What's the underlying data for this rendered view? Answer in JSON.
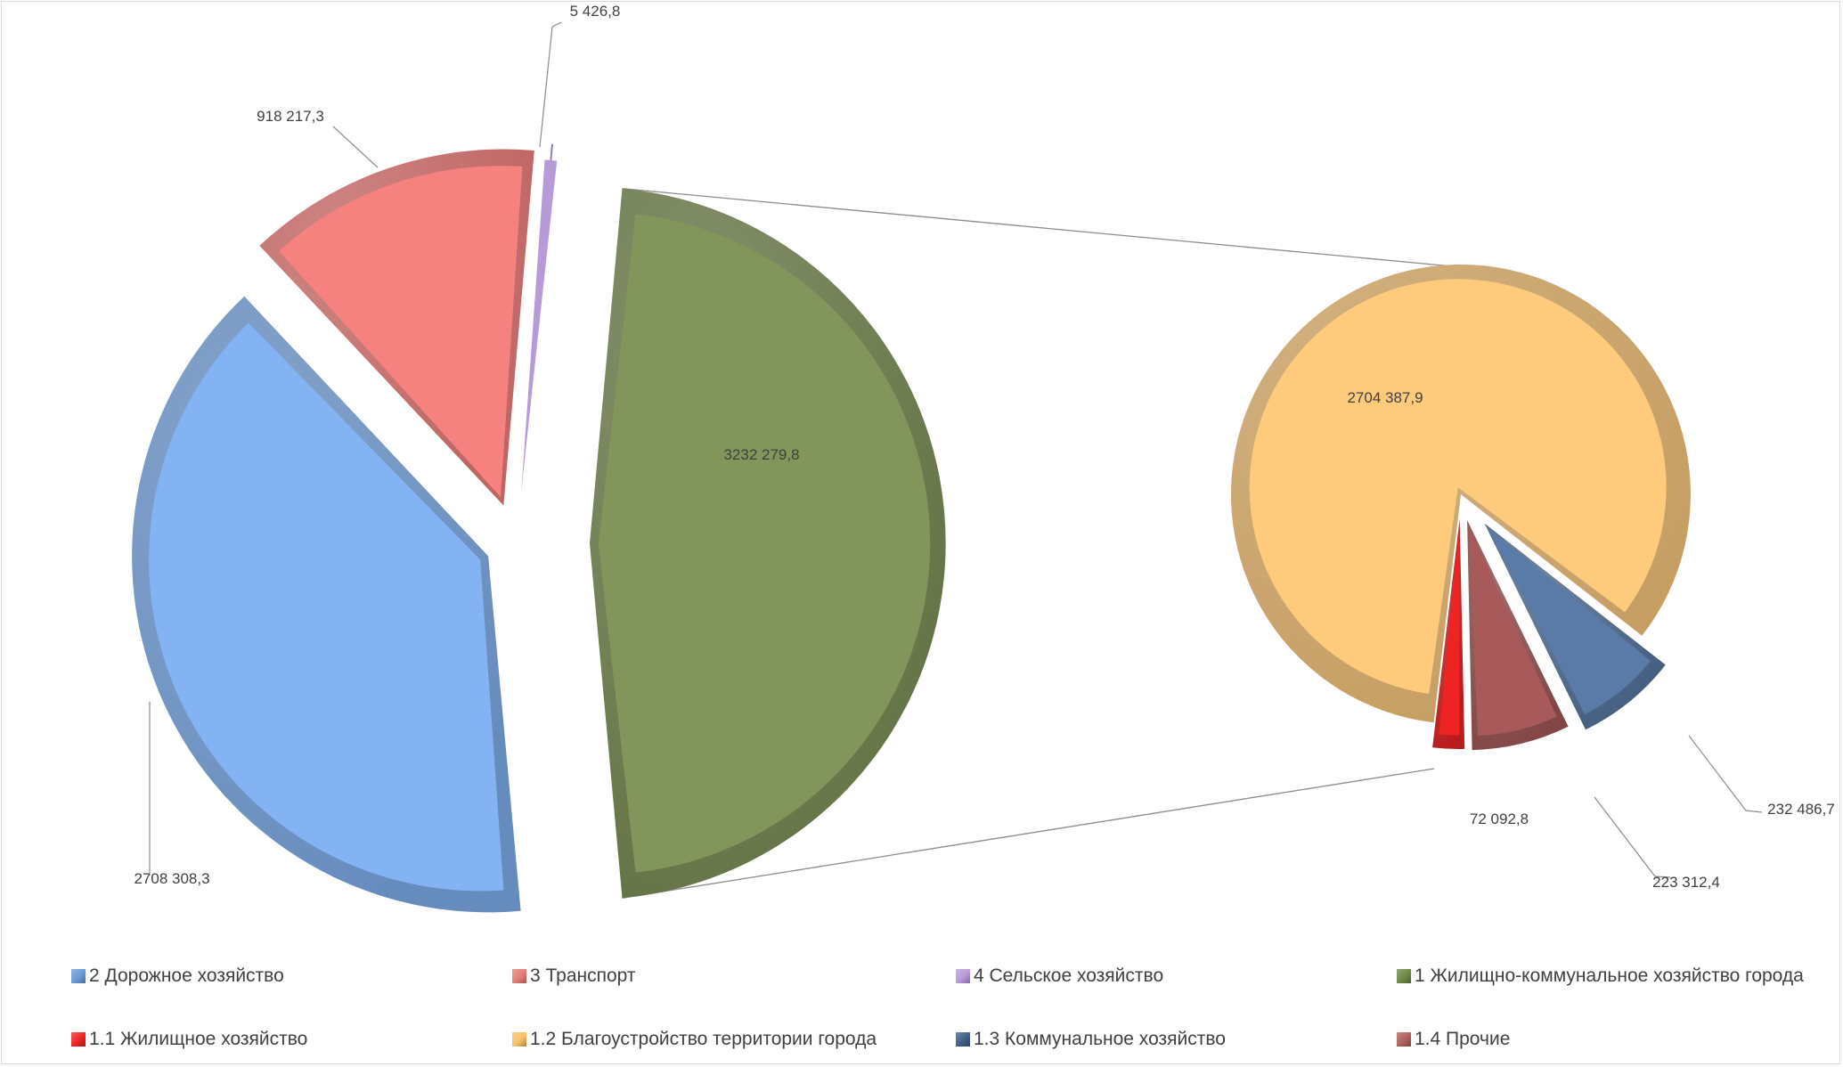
{
  "chart_data": {
    "type": "pie",
    "subtype": "pie-of-pie",
    "title": "",
    "primary": {
      "slices": [
        {
          "key": "zhkh",
          "name": "1 Жилищно-коммунальное  хозяйство города",
          "value": 3232279.8,
          "label": "3232 279,8",
          "color": "#82955a"
        },
        {
          "key": "road",
          "name": "2 Дорожное хозяйство",
          "value": 2708308.3,
          "label": "2708 308,3",
          "color": "#83b3f3"
        },
        {
          "key": "trans",
          "name": "3 Транспорт",
          "value": 918217.3,
          "label": "918 217,3",
          "color": "#f6827f"
        },
        {
          "key": "agri",
          "name": "4 Сельское хозяйство",
          "value": 5426.8,
          "label": "5 426,8",
          "color": "#b79ad8"
        }
      ]
    },
    "secondary": {
      "parent": "1 Жилищно-коммунальное  хозяйство города",
      "slices": [
        {
          "key": "blag",
          "name": "1.2 Благоустройство территории города",
          "value": 2704387.9,
          "label": "2704 387,9",
          "color": "#fecb7d"
        },
        {
          "key": "komm",
          "name": "1.3 Коммунальное хозяйство",
          "value": 232486.7,
          "label": "232 486,7",
          "color": "#5a7ba7"
        },
        {
          "key": "proch",
          "name": "1.4 Прочие",
          "value": 223312.4,
          "label": "223 312,4",
          "color": "#a85a5a"
        },
        {
          "key": "zhil",
          "name": "1.1 Жилищное хозяйство",
          "value": 72092.8,
          "label": "72 092,8",
          "color": "#ee2424"
        }
      ]
    },
    "legend": {
      "position": "bottom",
      "items": [
        {
          "label": "2 Дорожное хозяйство",
          "color": "#6b9bd6"
        },
        {
          "label": "3 Транспорт",
          "color": "#e67c79"
        },
        {
          "label": "4 Сельское хозяйство",
          "color": "#b79ad8"
        },
        {
          "label": "1 Жилищно-коммунальное  хозяйство города",
          "color": "#6f8a45"
        },
        {
          "label": "1.1 Жилищное хозяйство",
          "color": "#ee2424"
        },
        {
          "label": "1.2 Благоустройство территории города",
          "color": "#f7c165"
        },
        {
          "label": "1.3 Коммунальное хозяйство",
          "color": "#3f5f8c"
        },
        {
          "label": "1.4 Прочие",
          "color": "#b0605e"
        }
      ]
    }
  }
}
